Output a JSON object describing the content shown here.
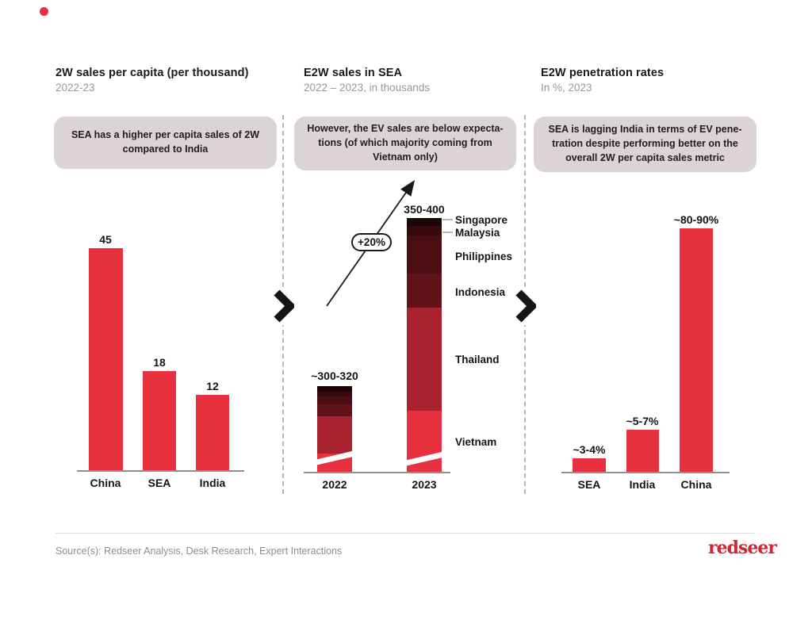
{
  "page": {
    "background": "#ffffff",
    "accent_red": "#E8313E",
    "callout_bg": "#DCD3D4",
    "logo_text": "redseer",
    "source_text": "Source(s): Redseer Analysis, Desk Research, Expert Interactions"
  },
  "panels": [
    {
      "title": "2W sales per capita (per thousand)",
      "subtitle": "2022-23",
      "callout": "SEA has a higher per capita sales of 2W\ncompared to India"
    },
    {
      "title": "E2W sales in SEA",
      "subtitle": "2022 – 2023, in thousands",
      "callout": "However, the EV sales are below expecta-\ntions (of which majority coming from\nVietnam only)"
    },
    {
      "title": "E2W penetration rates",
      "subtitle": "In %, 2023",
      "callout": "SEA is lagging India in terms of EV pene-\ntration despite performing better on the\noverall 2W per capita sales metric"
    }
  ],
  "chart_data": [
    {
      "type": "bar",
      "title": "2W sales per capita (per thousand), 2022-23",
      "categories": [
        "China",
        "SEA",
        "India"
      ],
      "values": [
        45,
        18,
        12
      ],
      "value_labels": [
        "45",
        "18",
        "12"
      ],
      "bar_color": "#E8313E",
      "grid": false,
      "legend": "none"
    },
    {
      "type": "stacked-bar",
      "title": "E2W sales in SEA, 2022 – 2023, in thousands",
      "categories": [
        "2022",
        "2023"
      ],
      "total_labels": [
        "~300-320",
        "350-400"
      ],
      "growth_label": "+20%",
      "axis_break_on_bottom_segment": true,
      "segments_top_to_bottom": [
        "Singapore",
        "Malaysia",
        "Philippines",
        "Indonesia",
        "Thailand",
        "Vietnam"
      ],
      "segment_colors": [
        "#1C0506",
        "#360A0E",
        "#4D0E13",
        "#611318",
        "#A72330",
        "#E8313E"
      ],
      "series": [
        {
          "name": "2022",
          "total_label": "~300-320",
          "segment_values": [
            20,
            17,
            29,
            43,
            135,
            66
          ]
        },
        {
          "name": "2023",
          "total_label": "350-400",
          "segment_values": [
            12,
            14,
            56,
            50,
            152,
            90
          ]
        }
      ],
      "grid": false,
      "legend": "right-of-bar-labels"
    },
    {
      "type": "bar",
      "title": "E2W penetration rates, in %, 2023",
      "categories": [
        "SEA",
        "India",
        "China"
      ],
      "values": [
        3.5,
        6,
        85
      ],
      "value_labels": [
        "~3-4%",
        "~5-7%",
        "~80-90%"
      ],
      "bar_color": "#E8313E",
      "grid": false,
      "legend": "none"
    }
  ]
}
